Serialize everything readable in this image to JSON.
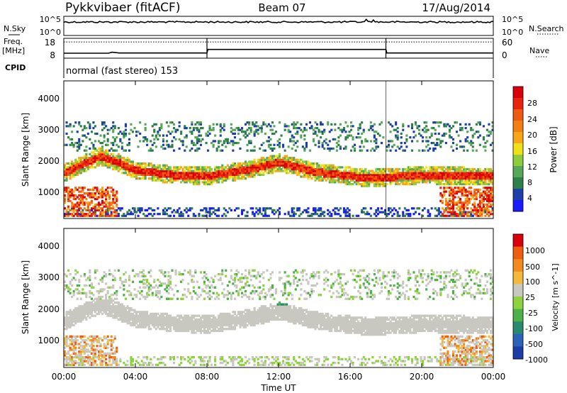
{
  "header": {
    "station": "Pykkvibaer (fitACF)",
    "beam": "Beam 07",
    "date": "17/Aug/2014"
  },
  "colors": {
    "power": [
      "#1a1aff",
      "#1d3fa8",
      "#2f7f4a",
      "#56a757",
      "#8ecc3c",
      "#f0e01a",
      "#f7a619",
      "#f27e14",
      "#ef5a12",
      "#e8230e",
      "#d8000c"
    ],
    "velocity": [
      "#1a3ea6",
      "#2a63b8",
      "#2a8a6f",
      "#4db049",
      "#8fd23f",
      "#c8c8c0",
      "#f4b93c",
      "#f28a1e",
      "#ee5d10",
      "#d8000c"
    ]
  },
  "chart_data": [
    {
      "type": "line",
      "name": "noise",
      "left_label": "N.Sky",
      "left_ticks": [
        "10^5",
        "10^0"
      ],
      "right_ticks": [
        "10^5",
        "10^0"
      ],
      "legend": "N.Search"
    },
    {
      "type": "line",
      "name": "frequency",
      "left_label": "Freq.",
      "left_unit": "[MHz]",
      "left_ticks": [
        "18",
        "8"
      ],
      "ylim_left": [
        8,
        18
      ],
      "right_ticks": [
        "60",
        "0"
      ],
      "ylim_right": [
        0,
        60
      ],
      "legend": "Nave",
      "x_hours": [
        0,
        2.5,
        2.7,
        3.1,
        8,
        8.05,
        18,
        18.05,
        24
      ],
      "freq_mhz": [
        10.5,
        10.5,
        11.0,
        10.6,
        10.6,
        12.4,
        12.4,
        10.6,
        10.6
      ],
      "nave": [
        49,
        49,
        49,
        49,
        49,
        49,
        49,
        49,
        49
      ]
    },
    {
      "type": "heatmap",
      "name": "cpid",
      "label": "CPID",
      "text": "normal (fast stereo) 153"
    },
    {
      "type": "heatmap",
      "name": "power",
      "ylabel": "Slant Range [km]",
      "ylim": [
        180,
        4600
      ],
      "yticks": [
        "1000",
        "2000",
        "3000",
        "4000"
      ],
      "colorbar_label": "Power [dB]",
      "colorbar_ticks": [
        "28",
        "24",
        "20",
        "16",
        "12",
        "8",
        "4"
      ],
      "band_center_km": [
        1620,
        1900,
        2150,
        1950,
        1700,
        1560,
        1520,
        1700,
        1950,
        1650,
        1450,
        1550,
        1500
      ],
      "band_hours": [
        0,
        1,
        2,
        3,
        4,
        6,
        8,
        10,
        12,
        14,
        17,
        20,
        24
      ]
    },
    {
      "type": "heatmap",
      "name": "velocity",
      "ylabel": "Slant Range [km]",
      "ylim": [
        180,
        4600
      ],
      "yticks": [
        "1000",
        "2000",
        "3000",
        "4000"
      ],
      "colorbar_label": "Velocity [m s^-1]",
      "colorbar_ticks": [
        "1000",
        "500",
        "100",
        "25",
        "-25",
        "-100",
        "-500",
        "-1000"
      ],
      "xlabel": "Time UT",
      "xticks": [
        "00:00",
        "04:00",
        "08:00",
        "12:00",
        "16:00",
        "20:00",
        "00:00"
      ]
    }
  ]
}
